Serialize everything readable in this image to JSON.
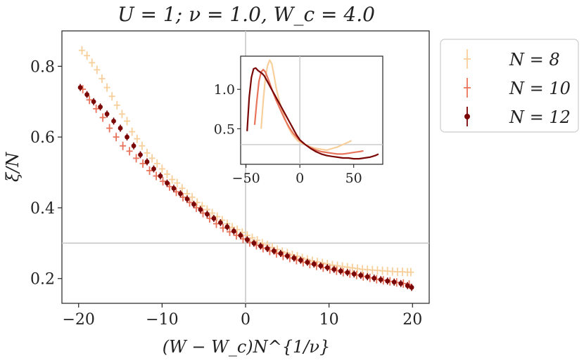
{
  "chart_data": {
    "type": "scatter",
    "title": "U = 1;  ν = 1.0,  W_c = 4.0",
    "xlabel": "(W − W_c)N^{1/ν}",
    "ylabel": "ξ/N",
    "xlim": [
      -22,
      22
    ],
    "ylim": [
      0.13,
      0.9
    ],
    "x_ticks": [
      -20,
      -10,
      0,
      10,
      20
    ],
    "y_ticks": [
      0.2,
      0.4,
      0.6,
      0.8
    ],
    "x_tick_labels": [
      "−20",
      "−10",
      "0",
      "10",
      "20"
    ],
    "y_tick_labels": [
      "0.2",
      "0.4",
      "0.6",
      "0.8"
    ],
    "reference_lines": {
      "x": 0,
      "y": 0.3
    },
    "legend_position": "outside-right",
    "series": [
      {
        "name": "N = 8",
        "color": "#f7cf9b",
        "marker": "plus",
        "x": [
          -19.6,
          -19.0,
          -18.4,
          -17.8,
          -17.2,
          -16.6,
          -16.0,
          -15.4,
          -14.8,
          -14.2,
          -13.6,
          -13.0,
          -12.4,
          -11.8,
          -11.2,
          -10.6,
          -10.0,
          -9.4,
          -8.8,
          -8.2,
          -7.6,
          -7.0,
          -6.4,
          -5.8,
          -5.2,
          -4.6,
          -4.0,
          -3.4,
          -2.8,
          -2.2,
          -1.6,
          -1.0,
          -0.4,
          0.2,
          0.8,
          1.4,
          2.0,
          2.6,
          3.2,
          3.8,
          4.4,
          5.0,
          5.6,
          6.2,
          6.8,
          7.4,
          8.0,
          8.6,
          9.2,
          9.8,
          10.4,
          11.0,
          11.6,
          12.2,
          12.8,
          13.4,
          14.0,
          14.6,
          15.2,
          15.8,
          16.4,
          17.0,
          17.6,
          18.2,
          18.8,
          19.4,
          19.8
        ],
        "y": [
          0.845,
          0.83,
          0.81,
          0.79,
          0.765,
          0.74,
          0.715,
          0.69,
          0.665,
          0.645,
          0.615,
          0.595,
          0.575,
          0.555,
          0.54,
          0.525,
          0.51,
          0.495,
          0.48,
          0.47,
          0.455,
          0.44,
          0.43,
          0.415,
          0.405,
          0.395,
          0.385,
          0.375,
          0.365,
          0.355,
          0.345,
          0.338,
          0.33,
          0.322,
          0.315,
          0.308,
          0.3,
          0.295,
          0.288,
          0.282,
          0.276,
          0.272,
          0.267,
          0.263,
          0.258,
          0.254,
          0.25,
          0.247,
          0.244,
          0.241,
          0.238,
          0.236,
          0.234,
          0.232,
          0.23,
          0.228,
          0.226,
          0.225,
          0.224,
          0.223,
          0.222,
          0.221,
          0.22,
          0.219,
          0.219,
          0.218,
          0.218
        ]
      },
      {
        "name": "N = 10",
        "color": "#e8745c",
        "marker": "plus",
        "x": [
          -19.5,
          -18.7,
          -17.9,
          -17.1,
          -16.3,
          -15.5,
          -14.7,
          -13.9,
          -13.1,
          -12.3,
          -11.5,
          -10.7,
          -9.9,
          -9.1,
          -8.3,
          -7.5,
          -6.7,
          -5.9,
          -5.1,
          -4.3,
          -3.5,
          -2.7,
          -1.9,
          -1.1,
          -0.3,
          0.5,
          1.3,
          2.1,
          2.9,
          3.7,
          4.5,
          5.3,
          6.1,
          6.9,
          7.7,
          8.5,
          9.3,
          10.1,
          10.9,
          11.7,
          12.5,
          13.3,
          14.1,
          14.9,
          15.7,
          16.5,
          17.3,
          18.1,
          18.9,
          19.6
        ],
        "y": [
          0.735,
          0.705,
          0.68,
          0.655,
          0.625,
          0.6,
          0.575,
          0.56,
          0.54,
          0.525,
          0.505,
          0.49,
          0.475,
          0.46,
          0.445,
          0.43,
          0.415,
          0.4,
          0.385,
          0.37,
          0.355,
          0.343,
          0.332,
          0.322,
          0.312,
          0.302,
          0.294,
          0.286,
          0.278,
          0.271,
          0.264,
          0.258,
          0.252,
          0.246,
          0.241,
          0.236,
          0.231,
          0.226,
          0.222,
          0.218,
          0.214,
          0.21,
          0.206,
          0.202,
          0.198,
          0.195,
          0.192,
          0.189,
          0.186,
          0.183
        ]
      },
      {
        "name": "N = 12",
        "color": "#7a0606",
        "marker": "dot",
        "x": [
          -19.8,
          -19.0,
          -18.2,
          -17.4,
          -16.6,
          -15.8,
          -15.0,
          -14.2,
          -13.4,
          -12.6,
          -11.8,
          -11.0,
          -10.2,
          -9.4,
          -8.6,
          -7.8,
          -7.0,
          -6.2,
          -5.4,
          -4.6,
          -3.8,
          -3.0,
          -2.2,
          -1.4,
          -0.6,
          0.2,
          1.0,
          1.8,
          2.6,
          3.4,
          4.2,
          5.0,
          5.8,
          6.6,
          7.4,
          8.2,
          9.0,
          9.8,
          10.6,
          11.4,
          12.2,
          13.0,
          13.8,
          14.6,
          15.4,
          16.2,
          17.0,
          17.8,
          18.6,
          19.4,
          19.9
        ],
        "y": [
          0.74,
          0.72,
          0.7,
          0.685,
          0.665,
          0.645,
          0.625,
          0.6,
          0.575,
          0.55,
          0.53,
          0.51,
          0.49,
          0.47,
          0.455,
          0.44,
          0.425,
          0.41,
          0.395,
          0.382,
          0.37,
          0.358,
          0.346,
          0.334,
          0.322,
          0.31,
          0.3,
          0.292,
          0.285,
          0.278,
          0.271,
          0.264,
          0.258,
          0.252,
          0.246,
          0.241,
          0.236,
          0.231,
          0.226,
          0.221,
          0.217,
          0.213,
          0.209,
          0.205,
          0.201,
          0.197,
          0.193,
          0.19,
          0.186,
          0.18,
          0.175
        ]
      }
    ],
    "inset": {
      "xlim": [
        -55,
        77
      ],
      "ylim": [
        0.05,
        1.42
      ],
      "x_ticks": [
        -50,
        0,
        50
      ],
      "y_ticks": [
        0.5,
        1.0
      ],
      "x_tick_labels": [
        "−50",
        "0",
        "50"
      ],
      "y_tick_labels": [
        "0.5",
        "1.0"
      ],
      "reference_lines": {
        "x": 0,
        "y": 0.3
      },
      "series": [
        {
          "name": "N = 8",
          "color": "#f7cf9b",
          "x": [
            -36,
            -34,
            -32,
            -30,
            -28,
            -26,
            -24,
            -22,
            -20,
            -18,
            -16,
            -14,
            -12,
            -10,
            -8,
            -6,
            -4,
            -2,
            0,
            5,
            10,
            15,
            20,
            25,
            30,
            35,
            40,
            45,
            48
          ],
          "y": [
            0.5,
            0.85,
            1.15,
            1.3,
            1.37,
            1.32,
            1.18,
            1.02,
            0.9,
            0.8,
            0.72,
            0.64,
            0.56,
            0.5,
            0.45,
            0.41,
            0.38,
            0.35,
            0.33,
            0.3,
            0.27,
            0.25,
            0.24,
            0.23,
            0.25,
            0.27,
            0.3,
            0.33,
            0.35
          ]
        },
        {
          "name": "N = 10",
          "color": "#e8745c",
          "x": [
            -42,
            -40,
            -38,
            -36,
            -34,
            -32,
            -30,
            -28,
            -26,
            -24,
            -22,
            -20,
            -18,
            -16,
            -14,
            -12,
            -10,
            -8,
            -6,
            -4,
            -2,
            0,
            5,
            10,
            15,
            20,
            25,
            30,
            35,
            40,
            45,
            50,
            55,
            59
          ],
          "y": [
            0.55,
            0.85,
            1.1,
            1.22,
            1.25,
            1.22,
            1.15,
            1.08,
            1.0,
            0.93,
            0.86,
            0.8,
            0.74,
            0.68,
            0.62,
            0.57,
            0.52,
            0.48,
            0.44,
            0.41,
            0.38,
            0.35,
            0.3,
            0.26,
            0.23,
            0.21,
            0.2,
            0.19,
            0.18,
            0.18,
            0.19,
            0.2,
            0.21,
            0.22
          ]
        },
        {
          "name": "N = 12",
          "color": "#7a0606",
          "x": [
            -49,
            -47,
            -45,
            -43,
            -41,
            -39,
            -37,
            -35,
            -33,
            -31,
            -29,
            -27,
            -25,
            -23,
            -21,
            -19,
            -17,
            -15,
            -13,
            -11,
            -9,
            -7,
            -5,
            -3,
            -1,
            0,
            5,
            10,
            15,
            20,
            25,
            30,
            35,
            40,
            45,
            50,
            55,
            60,
            65,
            70,
            73
          ],
          "y": [
            0.47,
            0.9,
            1.15,
            1.26,
            1.27,
            1.24,
            1.22,
            1.2,
            1.17,
            1.12,
            1.07,
            1.02,
            0.97,
            0.92,
            0.87,
            0.82,
            0.77,
            0.72,
            0.67,
            0.62,
            0.57,
            0.52,
            0.47,
            0.42,
            0.38,
            0.36,
            0.3,
            0.25,
            0.21,
            0.18,
            0.16,
            0.15,
            0.14,
            0.13,
            0.13,
            0.12,
            0.12,
            0.13,
            0.14,
            0.16,
            0.18
          ]
        }
      ]
    }
  }
}
